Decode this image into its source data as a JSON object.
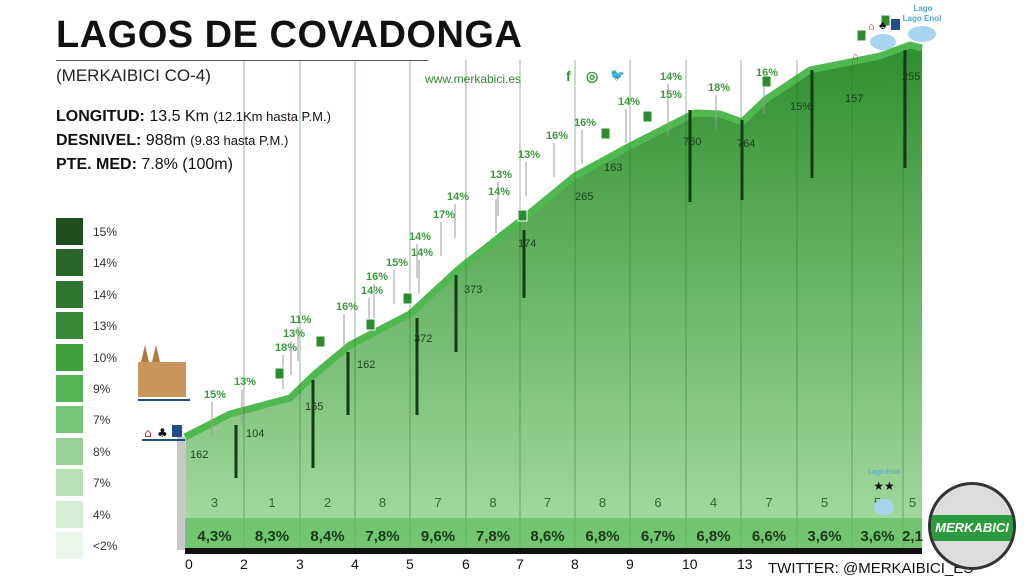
{
  "header": {
    "title": "LAGOS DE COVADONGA",
    "subtitle": "(MERKAIBICI CO-4)",
    "website": "www.merkabici.es",
    "social": {
      "facebook": "f",
      "instagram": "◎",
      "twitter": "🐦"
    }
  },
  "stats": [
    {
      "label": "LONGITUD:",
      "value": "13.5 Km",
      "note": "(12.1Km hasta P.M.)"
    },
    {
      "label": "DESNIVEL:",
      "value": "988m",
      "note": "(9.83 hasta P.M.)"
    },
    {
      "label": "PTE. MED:",
      "value": "7.8% (100m)",
      "note": ""
    }
  ],
  "legend": [
    {
      "label": "15%",
      "color": "#1f4f1f"
    },
    {
      "label": "14%",
      "color": "#2a652a"
    },
    {
      "label": "14%",
      "color": "#2f742f"
    },
    {
      "label": "13%",
      "color": "#378a37"
    },
    {
      "label": "10%",
      "color": "#3fa23f"
    },
    {
      "label": "9%",
      "color": "#55b455"
    },
    {
      "label": "7%",
      "color": "#78c478"
    },
    {
      "label": "8%",
      "color": "#98d198"
    },
    {
      "label": "7%",
      "color": "#b7e0b7"
    },
    {
      "label": "4%",
      "color": "#d4edd4"
    },
    {
      "label": "<2%",
      "color": "#e9f6e9"
    }
  ],
  "chart_data": {
    "type": "area",
    "title": "LAGOS DE COVADONGA",
    "x_ticks": [
      "0",
      "2",
      "3",
      "4",
      "5",
      "6",
      "7",
      "8",
      "9",
      "10",
      "13"
    ],
    "segment_grades": [
      "4,3%",
      "8,3%",
      "8,4%",
      "7,8%",
      "9,6%",
      "7,8%",
      "8,6%",
      "6,8%",
      "6,7%",
      "6,8%",
      "6,6%",
      "3,6%",
      "3,6%",
      "2,1"
    ],
    "segment_numbers": [
      "3",
      "1",
      "2",
      "8",
      "7",
      "8",
      "7",
      "8",
      "6",
      "4",
      "7",
      "5",
      "5",
      "5"
    ],
    "point_labels": [
      "162",
      "104",
      "165",
      "162",
      "372",
      "373",
      "174",
      "265",
      "163",
      "760",
      "764",
      "15%",
      "157",
      "255"
    ],
    "ramp_labels": [
      "15%",
      "13%",
      "18%",
      "13%",
      "11%",
      "16%",
      "14%",
      "16%",
      "15%",
      "14%",
      "14%",
      "17%",
      "14%",
      "13%",
      "14%",
      "13%",
      "16%",
      "16%",
      "14%",
      "14%",
      "15%",
      "18%",
      "16%"
    ],
    "place_labels": {
      "top_lake": "Lago",
      "top_lake_2": "Lago Enol",
      "bottom_lake": "Lago Enol",
      "stars": "★★"
    },
    "colors": {
      "fill_top": "#2f8f2f",
      "fill_bottom": "#a9dca4",
      "ridge": "#4fb84f"
    }
  },
  "footer": {
    "twitter": "TWITTER: @MERKAIBICI_ES",
    "logo": "MERKABICI"
  }
}
